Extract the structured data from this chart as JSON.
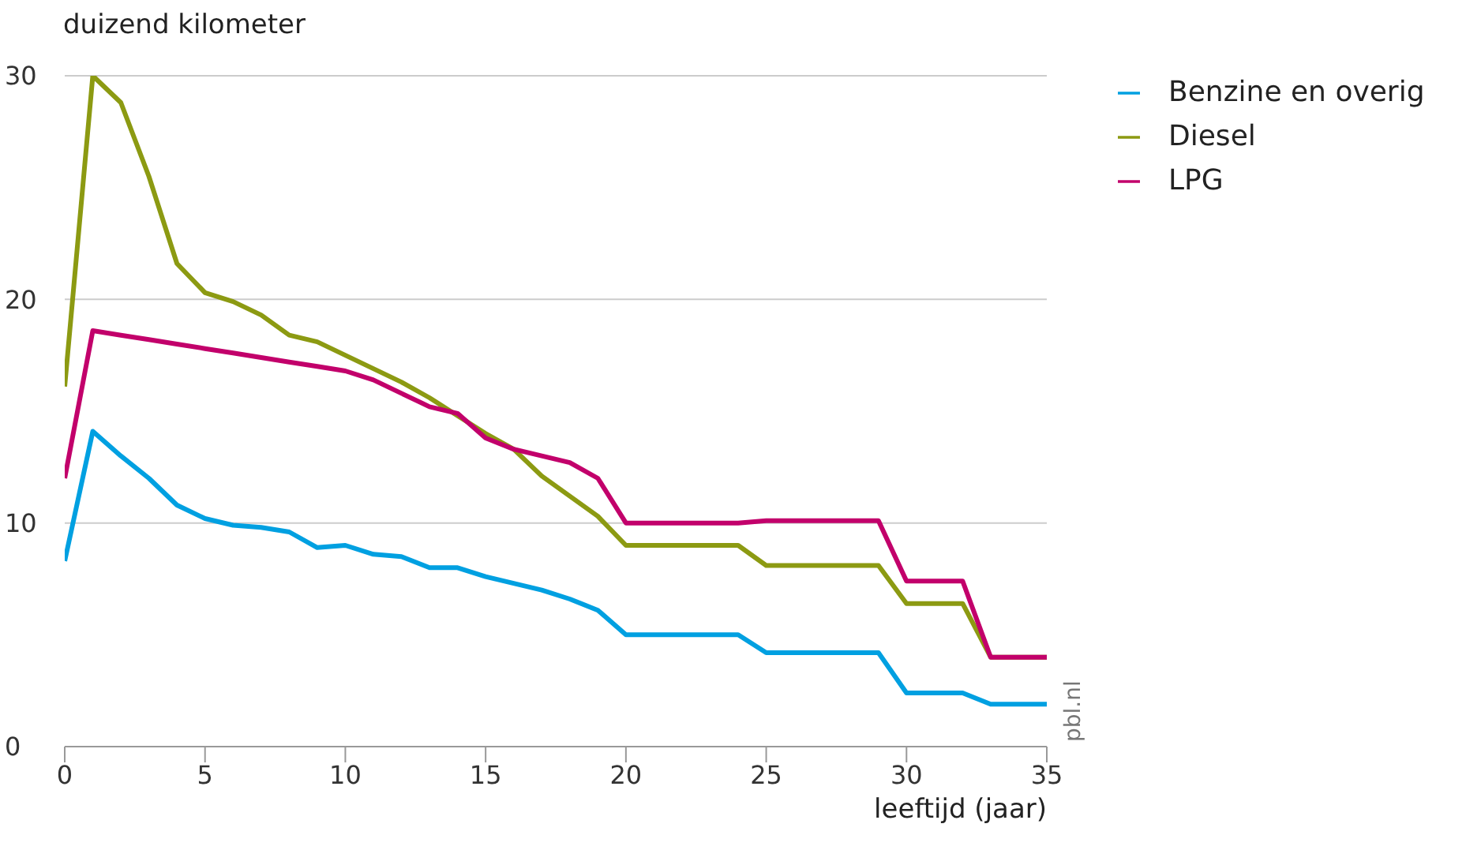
{
  "chart_data": {
    "type": "line",
    "ylabel": "duizend kilometer",
    "xlabel": "leeftijd (jaar)",
    "x": [
      0,
      1,
      2,
      3,
      4,
      5,
      6,
      7,
      8,
      9,
      10,
      11,
      12,
      13,
      14,
      15,
      16,
      17,
      18,
      19,
      20,
      21,
      22,
      23,
      24,
      25,
      26,
      27,
      28,
      29,
      30,
      31,
      32,
      33,
      34,
      35
    ],
    "series": [
      {
        "name": "Benzine en overig",
        "color": "#00a0e1",
        "values": [
          8.3,
          14.1,
          13.0,
          12.0,
          10.8,
          10.2,
          9.9,
          9.8,
          9.6,
          8.9,
          9.0,
          8.6,
          8.5,
          8.0,
          8.0,
          7.6,
          7.3,
          7.0,
          6.6,
          6.1,
          5.0,
          5.0,
          5.0,
          5.0,
          5.0,
          4.2,
          4.2,
          4.2,
          4.2,
          4.2,
          2.4,
          2.4,
          2.4,
          1.9,
          1.9,
          1.9
        ]
      },
      {
        "name": "Diesel",
        "color": "#8c9a12",
        "values": [
          16.1,
          30.0,
          28.8,
          25.5,
          21.6,
          20.3,
          19.9,
          19.3,
          18.4,
          18.1,
          17.5,
          16.9,
          16.3,
          15.6,
          14.8,
          14.0,
          13.3,
          12.1,
          11.2,
          10.3,
          9.0,
          9.0,
          9.0,
          9.0,
          9.0,
          8.1,
          8.1,
          8.1,
          8.1,
          8.1,
          6.4,
          6.4,
          6.4,
          4.0,
          4.0,
          4.0
        ]
      },
      {
        "name": "LPG",
        "color": "#c2006b",
        "values": [
          12.0,
          18.6,
          18.4,
          18.2,
          18.0,
          17.8,
          17.6,
          17.4,
          17.2,
          17.0,
          16.8,
          16.4,
          15.8,
          15.2,
          14.9,
          13.8,
          13.3,
          13.0,
          12.7,
          12.0,
          10.0,
          10.0,
          10.0,
          10.0,
          10.0,
          10.1,
          10.1,
          10.1,
          10.1,
          10.1,
          7.4,
          7.4,
          7.4,
          4.0,
          4.0,
          4.0
        ]
      }
    ],
    "xlim": [
      0,
      35
    ],
    "xticks": [
      0,
      5,
      10,
      15,
      20,
      25,
      30,
      35
    ],
    "ylim": [
      0,
      30
    ],
    "yticks": [
      0,
      10,
      20,
      30
    ],
    "grid": "y",
    "legend": "top right",
    "marker": "none",
    "line_style": "solid",
    "annotations": [
      "pbl.nl"
    ]
  }
}
